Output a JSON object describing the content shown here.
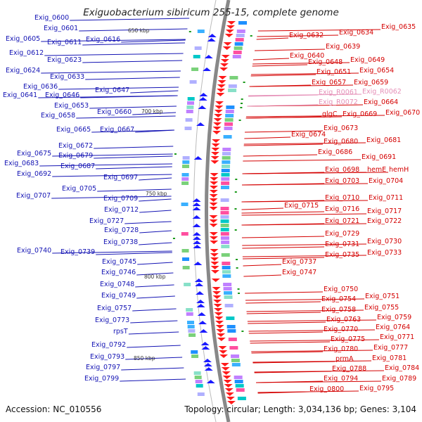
{
  "title": "Exiguobacterium sibiricum 255-15, complete genome",
  "footer": {
    "accession": "Accession: NC_010556",
    "summary": "Topology: circular; Length: 3,034,136 bp; Genes: 3,104"
  },
  "kbp_marks": [
    "650 kbp",
    "700 kbp",
    "750 kbp",
    "800 kbp",
    "850 kbp"
  ],
  "colors": {
    "left_label": "#1414b4",
    "right_label": "#d40000",
    "rna_label": "#e58fb7",
    "backbone": "#888888"
  },
  "left_labels": [
    "Exig_0600",
    "Exig_0601",
    "Exig_0605",
    "Exig_0611",
    "Exig_0616",
    "Exig_0612",
    "Exig_0623",
    "Exig_0624",
    "Exig_0633",
    "Exig_0636",
    "Exig_0647",
    "Exig_0641",
    "Exig_0646",
    "Exig_0653",
    "Exig_0658",
    "Exig_0660",
    "Exig_0665",
    "Exig_0667",
    "Exig_0672",
    "Exig_0675",
    "Exig_0679",
    "Exig_0683",
    "Exig_0687",
    "Exig_0692",
    "Exig_0697",
    "Exig_0705",
    "Exig_0707",
    "Exig_0709",
    "Exig_0712",
    "Exig_0727",
    "Exig_0728",
    "Exig_0738",
    "Exig_0740",
    "Exig_0739",
    "Exig_0745",
    "Exig_0746",
    "Exig_0748",
    "Exig_0749",
    "Exig_0757",
    "Exig_0773",
    "rpsT",
    "Exig_0792",
    "Exig_0793",
    "Exig_0797",
    "Exig_0799"
  ],
  "right_labels": [
    "Exig_0635",
    "Exig_0632",
    "Exig_0634",
    "Exig_0639",
    "Exig_0640",
    "Exig_0648",
    "Exig_0649",
    "Exig_0651",
    "Exig_0654",
    "Exig_0657",
    "Exig_0659",
    "Exig_0664",
    "glgC",
    "Exig_0669",
    "Exig_0670",
    "Exig_0673",
    "Exig_0674",
    "Exig_0680",
    "Exig_0681",
    "Exig_0686",
    "Exig_0691",
    "Exig_0698",
    "hemE",
    "hemH",
    "Exig_0703",
    "Exig_0704",
    "Exig_0710",
    "Exig_0711",
    "Exig_0715",
    "Exig_0716",
    "Exig_0717",
    "Exig_0721",
    "Exig_0722",
    "Exig_0729",
    "Exig_0731",
    "Exig_0730",
    "Exig_0735",
    "Exig_0733",
    "Exig_0737",
    "Exig_0747",
    "Exig_0750",
    "Exig_0751",
    "Exig_0754",
    "Exig_0755",
    "Exig_0758",
    "Exig_0759",
    "Exig_0763",
    "Exig_0764",
    "Exig_0770",
    "Exig_0771",
    "Exig_0775",
    "Exig_0777",
    "Exig_0780",
    "Exig_0781",
    "prmA",
    "Exig_0784",
    "Exig_0788",
    "Exig_0789",
    "Exig_0794",
    "Exig_0795",
    "Exig_0800"
  ],
  "rna_labels": [
    "Exig_R0061",
    "Exig_R0062",
    "Exig_R0072"
  ]
}
